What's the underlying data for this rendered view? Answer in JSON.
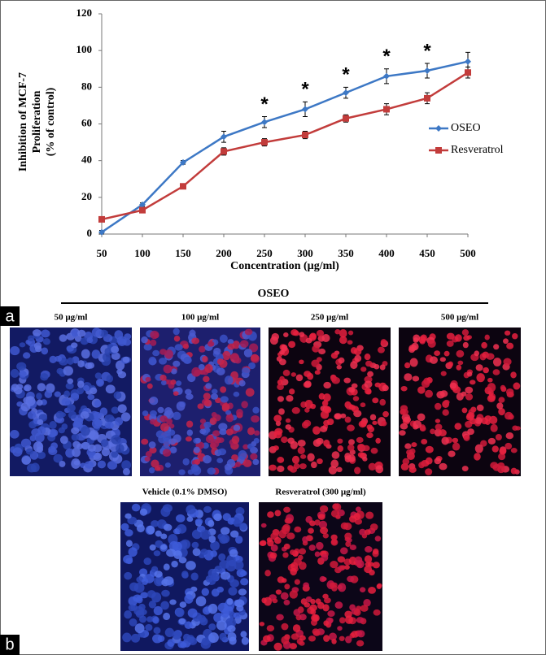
{
  "chart_data": {
    "type": "line",
    "ylabel": [
      "Inhibition of MCF-7",
      "Proliferation",
      "(% of control)"
    ],
    "xlabel": "Concentration (µg/ml)",
    "x": [
      50,
      100,
      150,
      200,
      250,
      300,
      350,
      400,
      450,
      500
    ],
    "xlim": [
      50,
      500
    ],
    "xticks": [
      50,
      100,
      150,
      200,
      250,
      300,
      350,
      400,
      450,
      500
    ],
    "ylim": [
      0,
      120
    ],
    "yticks": [
      0,
      20,
      40,
      60,
      80,
      100,
      120
    ],
    "grid": false,
    "legend": "right",
    "series": [
      {
        "name": "OSEO",
        "color": "#3d78c5",
        "marker": "diamond",
        "values": [
          1,
          16,
          39,
          53,
          61,
          68,
          77,
          86,
          89,
          94
        ],
        "errors": [
          1,
          1,
          1,
          3,
          3,
          4,
          3,
          4,
          4,
          5
        ]
      },
      {
        "name": "Resveratrol",
        "color": "#c23c3b",
        "marker": "square",
        "values": [
          8,
          13,
          26,
          45,
          50,
          54,
          63,
          68,
          74,
          88
        ],
        "errors": [
          1,
          1,
          1,
          2,
          2,
          2,
          2,
          3,
          3,
          3
        ]
      }
    ],
    "annotations": [
      {
        "text": "*",
        "x": 250
      },
      {
        "text": "*",
        "x": 300
      },
      {
        "text": "*",
        "x": 350
      },
      {
        "text": "*",
        "x": 400
      },
      {
        "text": "*",
        "x": 450
      }
    ]
  },
  "panel_labels": [
    "a",
    "b"
  ],
  "panel_b": {
    "header": "OSEO",
    "images": [
      {
        "label": "50 µg/ml"
      },
      {
        "label": "100 µg/ml"
      },
      {
        "label": "250 µg/ml"
      },
      {
        "label": "500 µg/ml"
      },
      {
        "label": "Vehicle (0.1% DMSO)"
      },
      {
        "label": "Resveratrol (300 µg/ml)"
      }
    ]
  }
}
